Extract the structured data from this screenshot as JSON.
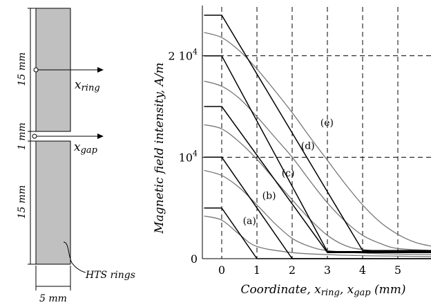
{
  "diagram": {
    "top_ring_height": "15 mm",
    "gap": "1 mm",
    "bottom_ring_height": "15 mm",
    "ring_width": "5 mm",
    "x_ring": "x",
    "x_ring_sub": "ring",
    "x_gap": "x",
    "x_gap_sub": "gap",
    "rings_label": "HTS rings",
    "colors": {
      "ring_fill": "#c0c0c0",
      "outline": "#000000"
    }
  },
  "chart_data": {
    "type": "line",
    "title": "",
    "xlabel": "Coordinate, x",
    "xlabel_sub1": "ring",
    "xlabel_sep": ", x",
    "xlabel_sub2": "gap",
    "xlabel_units": " (mm)",
    "ylabel": "Magnetic field intensity, A/m",
    "x_ticks": [
      "0",
      "1",
      "2",
      "3",
      "4",
      "5"
    ],
    "y_ticks": [
      {
        "value": 0,
        "label": "0"
      },
      {
        "value": 10000,
        "label": "10",
        "sup": "4"
      },
      {
        "value": 20000,
        "label": "2 10",
        "sup": "4"
      }
    ],
    "xlim": [
      -0.5,
      6
    ],
    "ylim": [
      0,
      24000
    ],
    "grid": "dashed",
    "series": [
      {
        "name": "(a)",
        "label_at": [
          0.6,
          3400
        ],
        "ideal": {
          "x": [
            -0.5,
            0,
            1,
            6
          ],
          "y": [
            5000,
            5000,
            0,
            0
          ]
        },
        "measured": {
          "x": [
            -0.5,
            0,
            0.5,
            1,
            2,
            3,
            4,
            5,
            6
          ],
          "y": [
            4200,
            3800,
            2400,
            1200,
            600,
            400,
            300,
            250,
            200
          ]
        }
      },
      {
        "name": "(b)",
        "label_at": [
          1.15,
          5900
        ],
        "ideal": {
          "x": [
            -0.5,
            0,
            2,
            6
          ],
          "y": [
            10000,
            10000,
            0,
            0
          ]
        },
        "measured": {
          "x": [
            -0.5,
            0,
            0.5,
            1,
            1.5,
            2,
            2.5,
            3,
            4,
            5,
            6
          ],
          "y": [
            8700,
            8200,
            7000,
            5300,
            3500,
            2000,
            1200,
            800,
            550,
            450,
            400
          ]
        }
      },
      {
        "name": "(c)",
        "label_at": [
          1.7,
          8100
        ],
        "ideal": {
          "x": [
            -0.5,
            0,
            3,
            6
          ],
          "y": [
            15000,
            15000,
            600,
            600
          ]
        },
        "measured": {
          "x": [
            -0.5,
            0,
            0.5,
            1,
            1.5,
            2,
            2.5,
            3,
            3.5,
            4,
            5,
            6
          ],
          "y": [
            13200,
            12800,
            11500,
            9800,
            7800,
            5800,
            3900,
            2300,
            1300,
            900,
            650,
            600
          ]
        }
      },
      {
        "name": "(d)",
        "label_at": [
          2.25,
          10800
        ],
        "ideal": {
          "x": [
            -0.5,
            0,
            3,
            6
          ],
          "y": [
            20000,
            20000,
            700,
            700
          ]
        },
        "measured": {
          "x": [
            -0.5,
            0,
            0.5,
            1,
            1.5,
            2,
            2.5,
            3,
            3.5,
            4,
            4.5,
            5,
            6
          ],
          "y": [
            17500,
            17000,
            15800,
            14000,
            12000,
            10000,
            7700,
            5500,
            3700,
            2300,
            1500,
            1000,
            800
          ]
        }
      },
      {
        "name": "(e)",
        "label_at": [
          2.8,
          13100
        ],
        "ideal": {
          "x": [
            -0.5,
            0,
            4,
            6
          ],
          "y": [
            24000,
            24000,
            800,
            800
          ]
        },
        "measured": {
          "x": [
            -0.5,
            0,
            0.5,
            1,
            1.5,
            2,
            2.5,
            3,
            3.5,
            4,
            4.5,
            5,
            5.5,
            6
          ],
          "y": [
            22300,
            21800,
            20500,
            18700,
            16600,
            14400,
            12000,
            9700,
            7400,
            5300,
            3600,
            2400,
            1600,
            1200
          ]
        }
      }
    ],
    "colors": {
      "ideal": "#000000",
      "measured": "#777777",
      "grid": "#000000"
    }
  }
}
